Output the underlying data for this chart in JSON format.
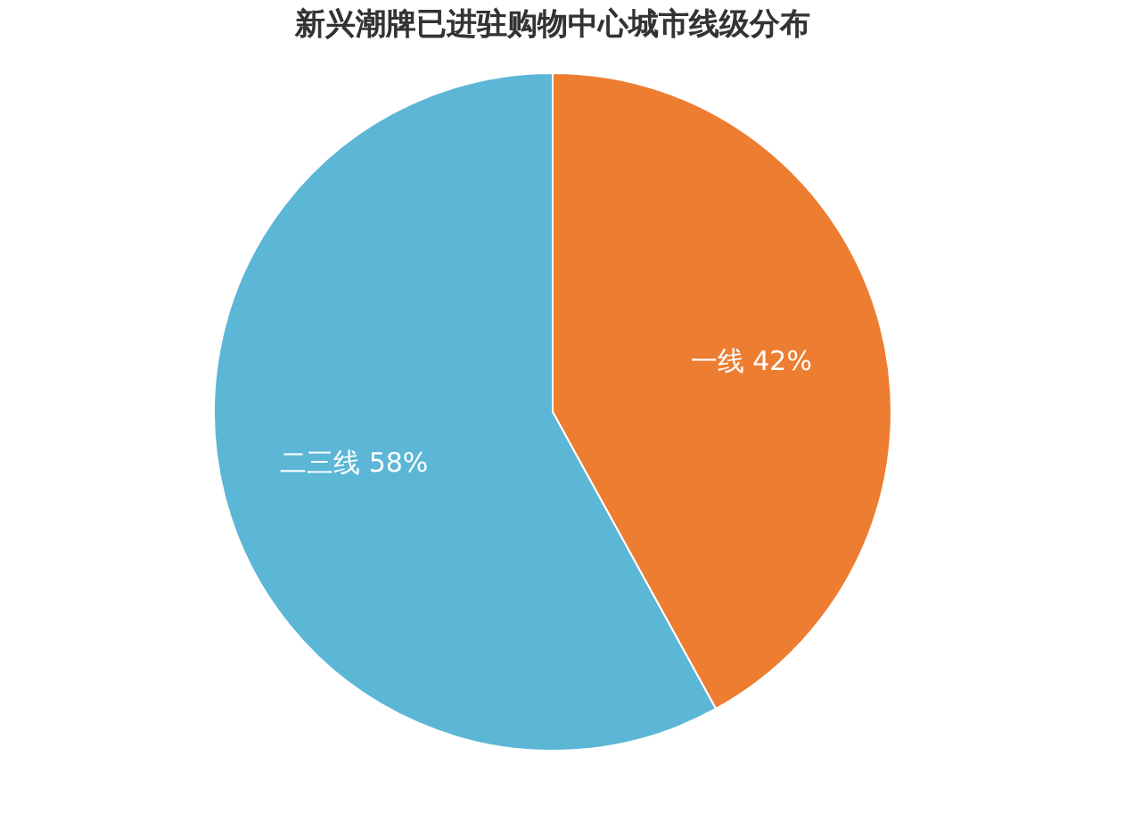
{
  "chart_data": {
    "type": "pie",
    "title": "新兴潮牌已进驻购物中心城市线级分布",
    "categories": [
      "一线",
      "二三线"
    ],
    "values": [
      42,
      58
    ],
    "value_labels": [
      "42%",
      "58%"
    ],
    "colors": [
      "#ed7d31",
      "#5cb6d6"
    ],
    "legend": false
  }
}
